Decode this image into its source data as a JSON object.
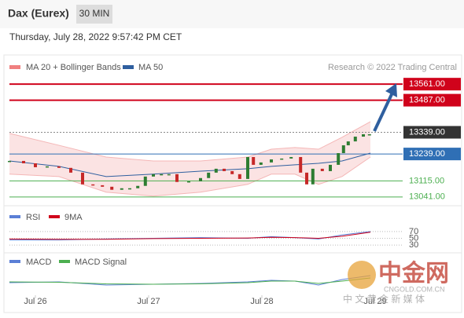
{
  "chart_data": {
    "type": "candlestick",
    "title": "Dax (Eurex)",
    "timeframe": "30 MIN",
    "timestamp": "Thursday, July 28, 2022 9:57:42 PM CET",
    "legend": [
      "MA 20 + Bollinger Bands",
      "MA 50"
    ],
    "credit": "Research © 2022 Trading Central",
    "xlim": [
      -6,
      90
    ],
    "xticks": [
      {
        "value": 0,
        "label": "Jul 26"
      },
      {
        "value": 24,
        "label": "Jul 27"
      },
      {
        "value": 48,
        "label": "Jul 28"
      },
      {
        "value": 72,
        "label": "Jul 29"
      }
    ],
    "ylim": [
      13015,
      13605
    ],
    "x": [
      -5.5,
      -2.5,
      0,
      2.5,
      5,
      7.5,
      10,
      12.2,
      14.2,
      16.2,
      18.3,
      20,
      21.7,
      23.3,
      25,
      26.7,
      28.3,
      30,
      32.5,
      35,
      36.7,
      38.3,
      40,
      41.7,
      43.3,
      45,
      46.2,
      47.8,
      50,
      52.2,
      54.2,
      56.2,
      57.5,
      58.8,
      60.8,
      62.5,
      64.2,
      65.3,
      66.3,
      67.8,
      69.5,
      70.8
    ],
    "close": [
      13207,
      13196,
      13178,
      13182,
      13175,
      13153,
      13099,
      13095,
      13088,
      13074,
      13081,
      13081,
      13092,
      13135,
      13146,
      13146,
      13146,
      13110,
      13113,
      13128,
      13153,
      13171,
      13160,
      13146,
      13124,
      13225,
      13189,
      13200,
      13214,
      13218,
      13225,
      13153,
      13099,
      13171,
      13160,
      13189,
      13243,
      13279,
      13297,
      13319,
      13330,
      13330
    ],
    "band_x": [
      -5.5,
      5,
      15,
      25,
      35,
      45,
      50,
      55,
      60,
      65,
      71
    ],
    "bollinger_upper": [
      13334,
      13279,
      13225,
      13207,
      13207,
      13225,
      13261,
      13269,
      13261,
      13316,
      13388
    ],
    "bollinger_lower": [
      13146,
      13135,
      13063,
      13045,
      13063,
      13099,
      13146,
      13146,
      13099,
      13135,
      13225
    ],
    "ma50": [
      13207,
      13182,
      13135,
      13146,
      13160,
      13171,
      13182,
      13189,
      13196,
      13207,
      13243
    ],
    "current": {
      "value": 13339,
      "label": "13339.00"
    },
    "levels": [
      {
        "value": 13561,
        "label": "13561.00",
        "color": "#d0021b",
        "style": "box"
      },
      {
        "value": 13487,
        "label": "13487.00",
        "color": "#d0021b",
        "style": "box"
      },
      {
        "value": 13239,
        "label": "13239.00",
        "color": "#2f6fb5",
        "style": "box"
      },
      {
        "value": 13115,
        "label": "13115.00",
        "color": "#4caf50",
        "style": "text"
      },
      {
        "value": 13041,
        "label": "13041.00",
        "color": "#4caf50",
        "style": "text"
      }
    ],
    "rsi": {
      "legend": [
        "RSI",
        "9MA"
      ],
      "ylim": [
        0,
        100
      ],
      "yticks": [
        70,
        50,
        30
      ],
      "values": [
        45,
        45,
        48,
        50,
        52,
        50,
        55,
        52,
        48,
        60,
        70
      ],
      "ma": [
        48,
        47,
        47,
        49,
        50,
        51,
        53,
        52,
        50,
        56,
        68
      ]
    },
    "macd": {
      "legend": [
        "MACD",
        "MACD Signal"
      ],
      "ylim": [
        -1.5,
        1.5
      ],
      "values": [
        0,
        0.1,
        -0.3,
        -0.2,
        -0.1,
        0.1,
        0.3,
        0.2,
        -0.3,
        0.4,
        0.9
      ],
      "signal": [
        0.1,
        0.05,
        -0.15,
        -0.2,
        -0.15,
        0,
        0.2,
        0.2,
        -0.1,
        0.2,
        0.6
      ]
    },
    "watermark": [
      "中金网",
      "CNGOLD.COM.CN",
      "中 文 黄 金 新 媒 体"
    ]
  }
}
